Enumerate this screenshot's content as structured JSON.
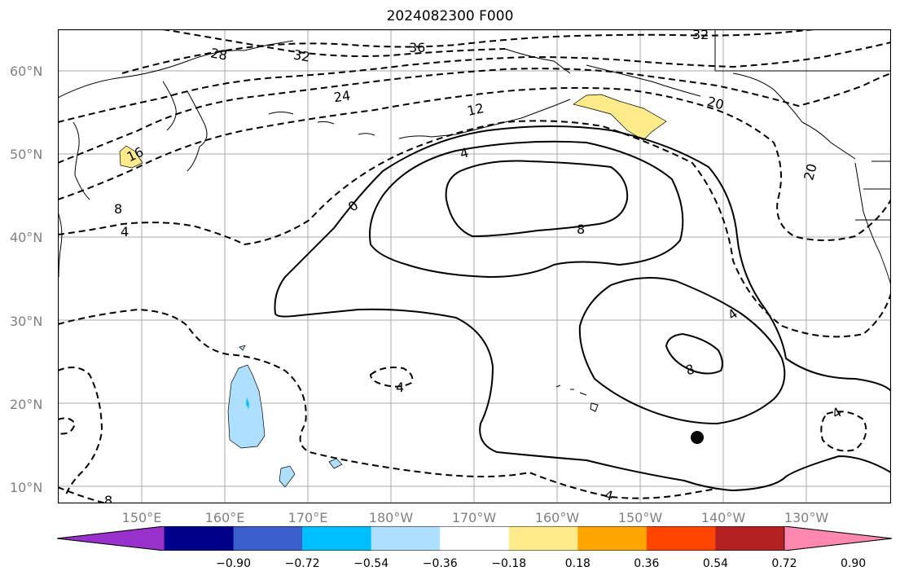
{
  "title": "2024082300 F000",
  "lat_labels": [
    "60°N",
    "50°N",
    "40°N",
    "30°N",
    "20°N",
    "10°N"
  ],
  "lon_labels": [
    "150°E",
    "160°E",
    "170°E",
    "180°W",
    "170°W",
    "160°W",
    "150°W",
    "140°W",
    "130°W"
  ],
  "contour_labels": {
    "c28": "28",
    "c32a": "32",
    "c36": "36",
    "c32b": "32",
    "c24": "24",
    "c12": "12",
    "c20a": "20",
    "c16": "16",
    "c8a": "8",
    "c4a": "4",
    "c0": "0",
    "c4b": "4",
    "c8b": "8",
    "c4c": "4",
    "c8c": "8",
    "c20b": "20",
    "c4d": "4",
    "c4e": "4",
    "c8d": "8",
    "c4f": "4"
  },
  "colorbar": {
    "ticks": [
      "−0.90",
      "−0.72",
      "−0.54",
      "−0.36",
      "−0.18",
      "0.18",
      "0.36",
      "0.54",
      "0.72",
      "0.90"
    ],
    "colors": [
      "#9932CC",
      "#00008B",
      "#3A5FCD",
      "#00BFFF",
      "#ADDFFF",
      "#FFFFFF",
      "#FFEB8A",
      "#FFA500",
      "#FF4500",
      "#B22222",
      "#FF88B0"
    ]
  }
}
